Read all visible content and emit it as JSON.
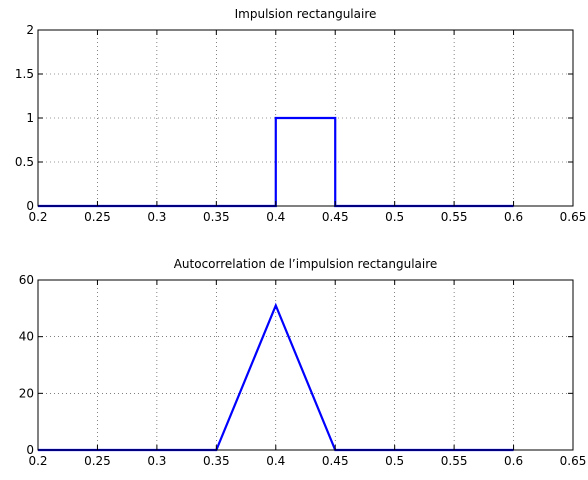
{
  "chart_data": [
    {
      "type": "line",
      "title": "Impulsion rectangulaire",
      "xlabel": "",
      "ylabel": "",
      "xlim": [
        0.2,
        0.65
      ],
      "ylim": [
        0,
        2
      ],
      "xticks": [
        0.2,
        0.25,
        0.3,
        0.35,
        0.4,
        0.45,
        0.5,
        0.55,
        0.6,
        0.65
      ],
      "xtick_labels": [
        "0.2",
        "0.25",
        "0.3",
        "0.35",
        "0.4",
        "0.45",
        "0.5",
        "0.55",
        "0.6",
        "0.65"
      ],
      "yticks": [
        0,
        0.5,
        1,
        1.5,
        2
      ],
      "ytick_labels": [
        "0",
        "0.5",
        "1",
        "1.5",
        "2"
      ],
      "grid": true,
      "series": [
        {
          "color": "#0000ff",
          "x": [
            0.2,
            0.4,
            0.4,
            0.45,
            0.45,
            0.6
          ],
          "y": [
            0,
            0,
            1,
            1,
            0,
            0
          ]
        }
      ]
    },
    {
      "type": "line",
      "title": "Autocorrelation de l’impulsion rectangulaire",
      "xlabel": "",
      "ylabel": "",
      "xlim": [
        0.2,
        0.65
      ],
      "ylim": [
        0,
        60
      ],
      "xticks": [
        0.2,
        0.25,
        0.3,
        0.35,
        0.4,
        0.45,
        0.5,
        0.55,
        0.6,
        0.65
      ],
      "xtick_labels": [
        "0.2",
        "0.25",
        "0.3",
        "0.35",
        "0.4",
        "0.45",
        "0.5",
        "0.55",
        "0.6",
        "0.65"
      ],
      "yticks": [
        0,
        20,
        40,
        60
      ],
      "ytick_labels": [
        "0",
        "20",
        "40",
        "60"
      ],
      "grid": true,
      "series": [
        {
          "color": "#0000ff",
          "x": [
            0.2,
            0.35,
            0.4,
            0.45,
            0.6
          ],
          "y": [
            0,
            0,
            51,
            0,
            0
          ]
        }
      ]
    }
  ]
}
